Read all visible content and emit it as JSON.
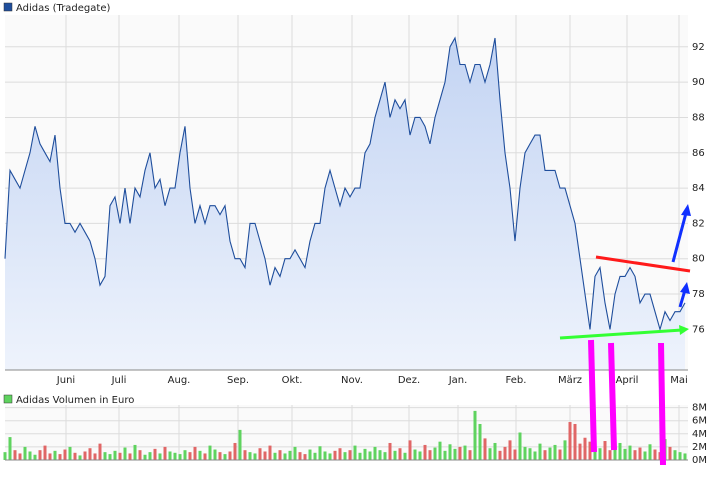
{
  "chart_data": [
    {
      "type": "line",
      "xlim": [
        0,
        136
      ],
      "xticks": [
        {
          "value": 12.2,
          "label": "Juni"
        },
        {
          "value": 22.8,
          "label": "Juli"
        },
        {
          "value": 34.8,
          "label": "Aug."
        },
        {
          "value": 46.6,
          "label": "Sep."
        },
        {
          "value": 57.4,
          "label": "Okt."
        },
        {
          "value": 69.4,
          "label": "Nov."
        },
        {
          "value": 80.8,
          "label": "Dez."
        },
        {
          "value": 90.6,
          "label": "Jan."
        },
        {
          "value": 102.2,
          "label": "Feb."
        },
        {
          "value": 113,
          "label": "März"
        },
        {
          "value": 124.4,
          "label": "April"
        },
        {
          "value": 134.8,
          "label": "Mai"
        }
      ],
      "ylim": [
        73.7,
        93.8
      ],
      "yticks": [
        76,
        78,
        80,
        82,
        84,
        86,
        88,
        90,
        92
      ],
      "grid": true,
      "series": [
        {
          "name": "Adidas (Tradegate)",
          "color": "#1f4e9c",
          "values": [
            80,
            85,
            84.5,
            84,
            85,
            86,
            87.5,
            86.5,
            86,
            85.5,
            87,
            84,
            82,
            82,
            81.5,
            82,
            81.5,
            81,
            80,
            78.5,
            79,
            83,
            83.5,
            82,
            84,
            82,
            84,
            83.5,
            85,
            86,
            84,
            84.5,
            83,
            84,
            84,
            86,
            87.5,
            84,
            82,
            83,
            82,
            83,
            83,
            82.5,
            83,
            81,
            80,
            80,
            79.5,
            82,
            82,
            81,
            80,
            78.5,
            79.5,
            79,
            80,
            80,
            80.5,
            80,
            79.5,
            81,
            82,
            82,
            84,
            85,
            84,
            83,
            84,
            83.5,
            84,
            84,
            86,
            86.5,
            88,
            89,
            90,
            88,
            89,
            88.5,
            89,
            87,
            88,
            88,
            87.5,
            86.5,
            88,
            89,
            90,
            92,
            92.5,
            91,
            91,
            90,
            91,
            91,
            90,
            91,
            92.5,
            89,
            86,
            84,
            81,
            84,
            86,
            86.5,
            87,
            87,
            85,
            85,
            85,
            84,
            84,
            83,
            82,
            80,
            78,
            76,
            79,
            79.5,
            77.5,
            76,
            78,
            79,
            79,
            79.5,
            79,
            77.5,
            78,
            78,
            77,
            76,
            77,
            76.5,
            77,
            77,
            77.5
          ]
        }
      ]
    },
    {
      "type": "bar",
      "ylim": [
        0,
        8.4
      ],
      "yticks": [
        {
          "value": 0,
          "label": "0M"
        },
        {
          "value": 2,
          "label": "2M"
        },
        {
          "value": 4,
          "label": "4M"
        },
        {
          "value": 6,
          "label": "6M"
        },
        {
          "value": 8,
          "label": "8M"
        }
      ],
      "up_color": "#5fd35f",
      "down_color": "#e06666",
      "series": [
        {
          "name": "Adidas Volumen in Euro",
          "color": "#5fd35f",
          "values": [
            1.2,
            3.5,
            1.5,
            1.0,
            2.0,
            1.3,
            0.8,
            1.5,
            2.2,
            1.0,
            1.4,
            0.9,
            1.6,
            2.0,
            1.1,
            0.7,
            1.3,
            1.8,
            1.0,
            2.5,
            1.2,
            0.9,
            1.4,
            1.1,
            1.9,
            1.0,
            2.3,
            1.5,
            0.8,
            1.2,
            1.7,
            1.0,
            2.0,
            1.3,
            1.1,
            0.9,
            1.5,
            1.2,
            2.0,
            1.4,
            1.0,
            2.2,
            1.6,
            1.2,
            0.9,
            1.3,
            2.6,
            4.6,
            1.5,
            1.2,
            1.0,
            1.8,
            1.3,
            2.2,
            1.1,
            1.5,
            1.0,
            1.4,
            2.0,
            1.2,
            0.9,
            1.6,
            1.1,
            2.1,
            1.3,
            1.0,
            1.4,
            1.8,
            1.2,
            1.5,
            2.2,
            1.1,
            1.7,
            1.3,
            2.0,
            1.5,
            1.2,
            2.6,
            1.4,
            1.8,
            1.1,
            3.0,
            1.6,
            1.3,
            2.3,
            1.5,
            1.9,
            2.8,
            1.4,
            2.4,
            1.7,
            2.0,
            2.2,
            1.5,
            7.5,
            5.5,
            3.3,
            1.8,
            2.6,
            1.4,
            2.0,
            3.0,
            1.6,
            4.2,
            2.0,
            1.8,
            1.3,
            2.5,
            1.5,
            1.9,
            2.3,
            1.6,
            3.0,
            5.8,
            5.5,
            2.5,
            3.4,
            2.8,
            2.2,
            1.8,
            2.9,
            1.5,
            2.0,
            2.6,
            1.7,
            2.2,
            1.5,
            1.9,
            1.3,
            2.4,
            1.6,
            1.2,
            3.2,
            2.0,
            1.5,
            1.2,
            1.0
          ]
        }
      ]
    }
  ]
}
